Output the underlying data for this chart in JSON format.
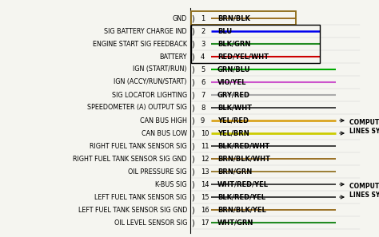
{
  "background_color": "#f5f5f0",
  "left_labels": [
    "GND",
    "SIG BATTERY CHARGE IND",
    "ENGINE START SIG FEEDBACK",
    "BATTERY",
    "IGN (START/RUN)",
    "IGN (ACCY/RUN/START)",
    "SIG LOCATOR LIGHTING",
    "SPEEDOMETER (A) OUTPUT SIG",
    "CAN BUS HIGH",
    "CAN BUS LOW",
    "RIGHT FUEL TANK SENSOR SIG",
    "RIGHT FUEL TANK SENSOR SIG GND",
    "OIL PRESSURE SIG",
    "K-BUS SIG",
    "LEFT FUEL TANK SENSOR SIG",
    "LEFT FUEL TANK SENSOR SIG GND",
    "OIL LEVEL SENSOR SIG"
  ],
  "pin_numbers": [
    1,
    2,
    3,
    4,
    5,
    6,
    7,
    8,
    9,
    10,
    11,
    12,
    13,
    14,
    15,
    16,
    17
  ],
  "wire_labels": [
    "BRN/BLK",
    "BLU",
    "BLK/GRN",
    "RED/YEL/WHT",
    "GRN/BLU",
    "VIO/YEL",
    "GRY/RED",
    "BLK/WHT",
    "YEL/RED",
    "YEL/BRN",
    "BLK/RED/WHT",
    "BRN/BLK/WHT",
    "BRN/GRN",
    "WHT/RED/YEL",
    "BLK/RED/YEL",
    "BRN/BLK/YEL",
    "WHT/GRN"
  ],
  "wire_colors": [
    "#8B5A00",
    "#0000EE",
    "#228B22",
    "#CC0000",
    "#00AA00",
    "#CC55CC",
    "#AAAAAA",
    "#222222",
    "#DAA520",
    "#CCCC00",
    "#222222",
    "#8B5A00",
    "#8B6914",
    "#222222",
    "#222222",
    "#8B5A00",
    "#228B22"
  ],
  "wire_lw": [
    1.2,
    1.8,
    1.5,
    1.5,
    1.5,
    1.5,
    1.5,
    1.2,
    2.0,
    2.0,
    1.2,
    1.2,
    1.2,
    1.2,
    1.2,
    1.2,
    1.5
  ],
  "annotations": [
    {
      "pin_indices": [
        8,
        9
      ],
      "text1": "COMPUTER DATA",
      "text2": "LINES SYSTEM"
    },
    {
      "pin_indices": [
        13,
        14
      ],
      "text1": "COMPUTER DATA",
      "text2": "LINES SYSTEM"
    }
  ],
  "box1_color": "#8B6914",
  "box2_color": "#000000",
  "fig_width": 4.74,
  "fig_height": 2.97,
  "dpi": 100
}
